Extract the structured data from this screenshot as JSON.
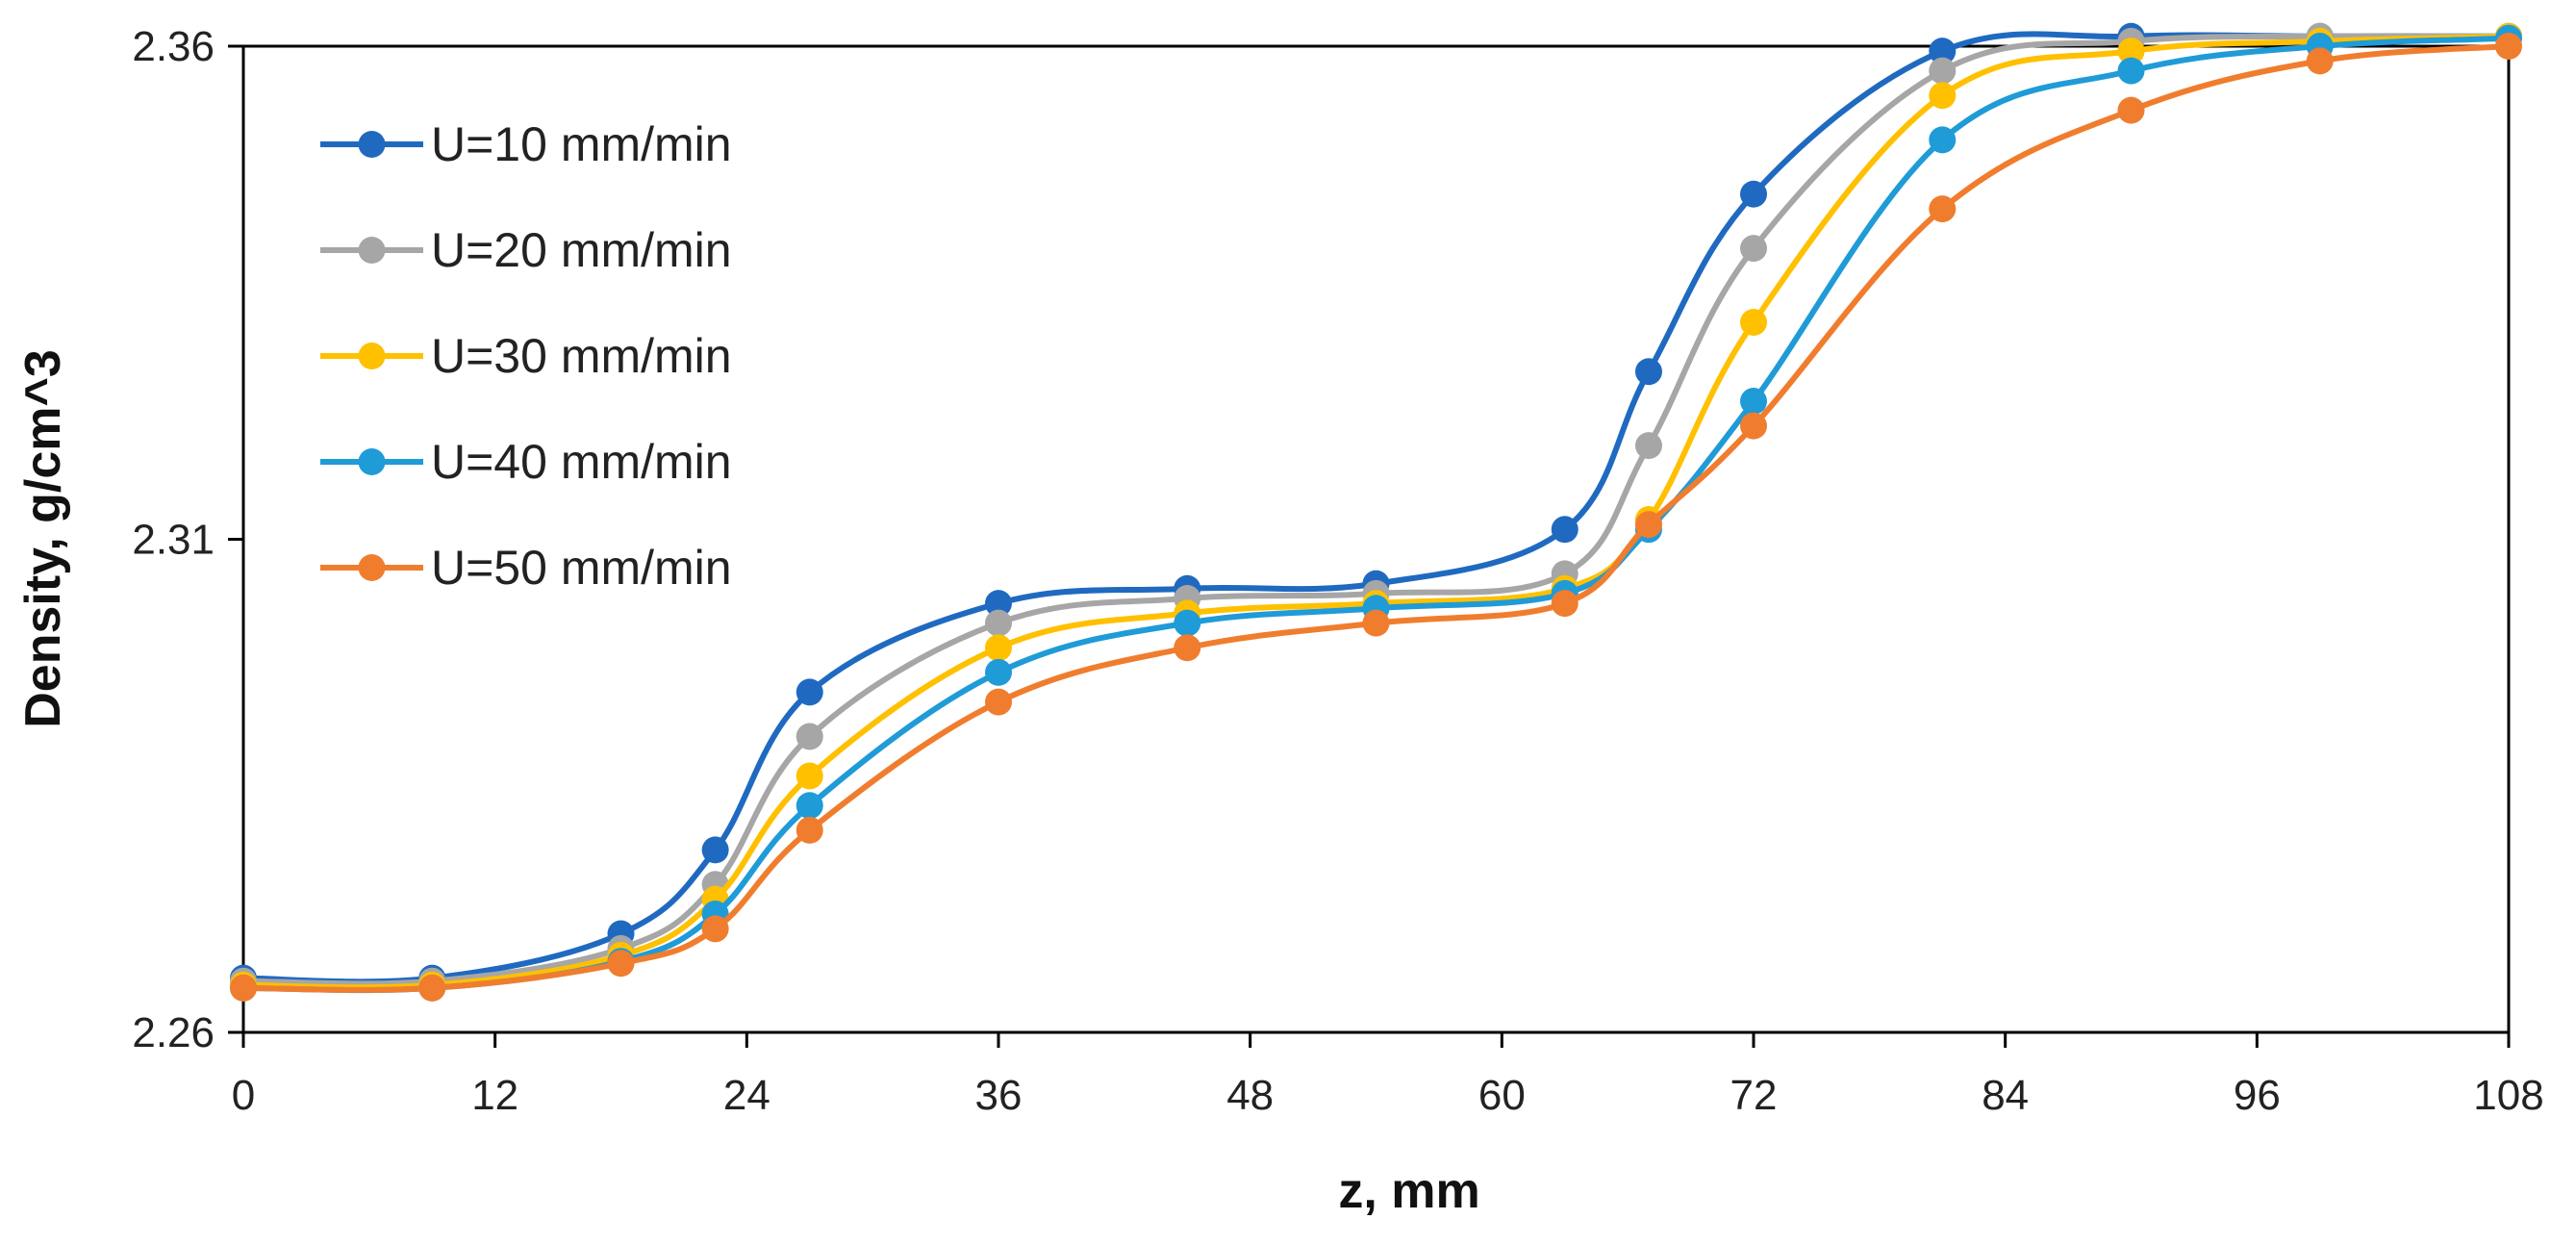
{
  "chart_data": {
    "type": "line",
    "title": "",
    "xlabel": "z, mm",
    "ylabel": "Density, g/cm^3",
    "xlim": [
      0,
      108
    ],
    "ylim": [
      2.26,
      2.36
    ],
    "xticks": [
      0,
      12,
      24,
      36,
      48,
      60,
      72,
      84,
      96,
      108
    ],
    "yticks": [
      2.26,
      2.31,
      2.36
    ],
    "xtick_labels": [
      "0",
      "12",
      "24",
      "36",
      "48",
      "60",
      "72",
      "84",
      "96",
      "108"
    ],
    "ytick_labels": [
      "2.26",
      "2.31",
      "2.36"
    ],
    "grid": false,
    "legend_position": "top-left",
    "x": [
      0,
      9,
      18,
      22.5,
      27,
      36,
      45,
      54,
      63,
      67,
      72,
      81,
      90,
      99,
      108
    ],
    "series": [
      {
        "name": "U=10 mm/min",
        "color": "#1f6ac0",
        "values": [
          2.2655,
          2.2655,
          2.27,
          2.2785,
          2.2945,
          2.3035,
          2.305,
          2.3055,
          2.311,
          2.327,
          2.345,
          2.3595,
          2.361,
          2.361,
          2.361
        ]
      },
      {
        "name": "U=20 mm/min",
        "color": "#a6a6a6",
        "values": [
          2.2652,
          2.2652,
          2.2685,
          2.275,
          2.29,
          2.3015,
          2.304,
          2.3045,
          2.3065,
          2.3195,
          2.3395,
          2.3575,
          2.3605,
          2.361,
          2.361
        ]
      },
      {
        "name": "U=30 mm/min",
        "color": "#ffc000",
        "values": [
          2.2648,
          2.2648,
          2.2678,
          2.2735,
          2.286,
          2.299,
          2.3025,
          2.3035,
          2.305,
          2.312,
          2.332,
          2.355,
          2.3595,
          2.3605,
          2.361
        ]
      },
      {
        "name": "U=40 mm/min",
        "color": "#1f9bd7",
        "values": [
          2.2645,
          2.2645,
          2.2672,
          2.272,
          2.283,
          2.2965,
          2.3015,
          2.303,
          2.3045,
          2.311,
          2.324,
          2.3505,
          2.3575,
          2.36,
          2.3608
        ]
      },
      {
        "name": "U=50 mm/min",
        "color": "#f07d2e",
        "values": [
          2.2645,
          2.2645,
          2.267,
          2.2705,
          2.2805,
          2.2935,
          2.299,
          2.3015,
          2.3035,
          2.3115,
          2.3215,
          2.3435,
          2.3535,
          2.3585,
          2.36
        ]
      }
    ]
  }
}
